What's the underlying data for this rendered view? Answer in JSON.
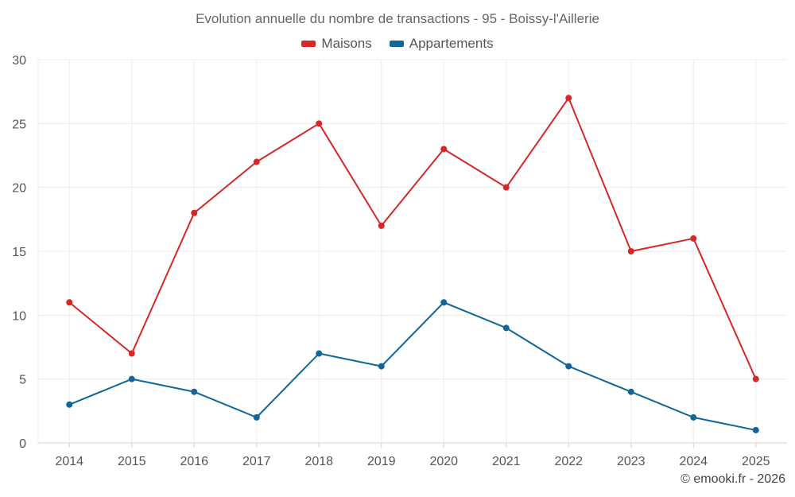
{
  "chart_data": {
    "type": "line",
    "title": "Evolution annuelle du nombre de transactions - 95 - Boissy-l'Aillerie",
    "categories": [
      "2014",
      "2015",
      "2016",
      "2017",
      "2018",
      "2019",
      "2020",
      "2021",
      "2022",
      "2023",
      "2024",
      "2025"
    ],
    "series": [
      {
        "name": "Maisons",
        "color": "#d62728",
        "values": [
          11,
          7,
          18,
          22,
          25,
          17,
          23,
          20,
          27,
          15,
          16,
          5
        ]
      },
      {
        "name": "Appartements",
        "color": "#0e6699",
        "values": [
          3,
          5,
          4,
          2,
          7,
          6,
          11,
          9,
          6,
          4,
          2,
          1
        ]
      }
    ],
    "yticks": [
      0,
      5,
      10,
      15,
      20,
      25,
      30
    ],
    "ylim": [
      0,
      30
    ],
    "xlabel": "",
    "ylabel": "",
    "grid": true,
    "legend_position": "top-center"
  },
  "credit": "© emooki.fr - 2026"
}
